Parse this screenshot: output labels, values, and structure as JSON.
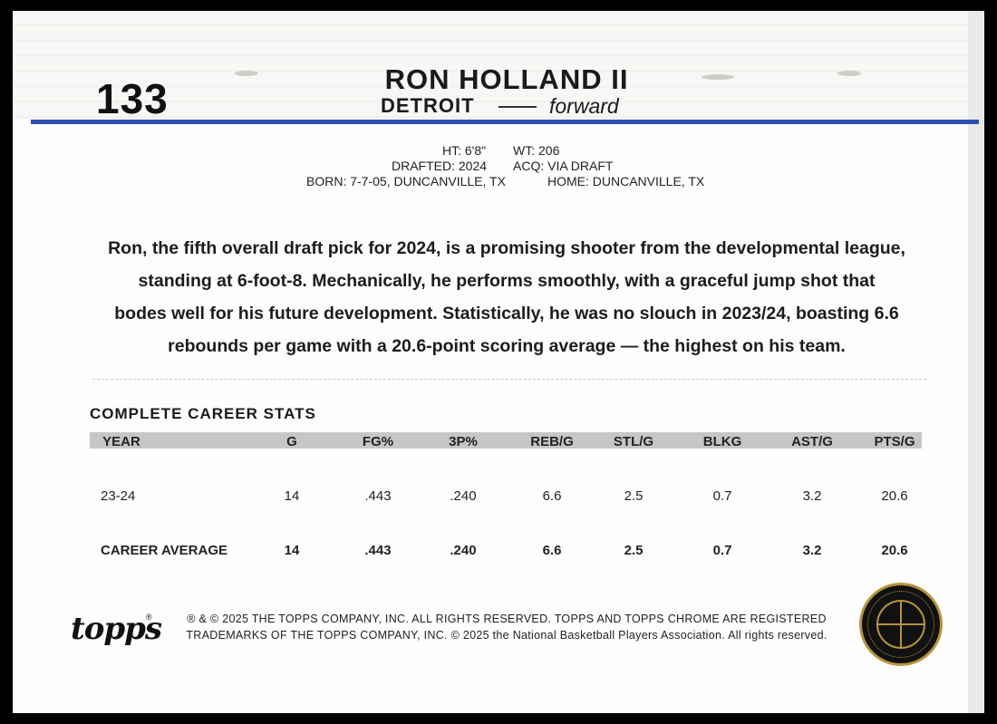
{
  "card": {
    "number": "133",
    "player_name": "RON HOLLAND II",
    "team": "DETROIT",
    "position": "forward"
  },
  "bio": {
    "ht": "HT: 6'8\"",
    "wt": "WT: 206",
    "drafted": "DRAFTED: 2024",
    "acq": "ACQ: VIA DRAFT",
    "born": "BORN: 7-7-05, DUNCANVILLE, TX",
    "home": "HOME: DUNCANVILLE, TX"
  },
  "blurb": {
    "line1": "Ron, the fifth overall draft pick for 2024, is a promising shooter from the developmental league,",
    "line2": "standing at 6-foot-8. Mechanically, he performs smoothly, with a graceful jump shot that",
    "line3": "bodes well for his future development. Statistically, he was no slouch in 2023/24, boasting 6.6",
    "line4": "rebounds per game with a 20.6-point scoring average — the highest on his team."
  },
  "stats": {
    "title": "COMPLETE CAREER STATS",
    "headers": [
      "YEAR",
      "G",
      "FG%",
      "3P%",
      "REB/G",
      "STL/G",
      "BLKG",
      "AST/G",
      "PTS/G"
    ],
    "rows": [
      [
        "23-24",
        "14",
        ".443",
        ".240",
        "6.6",
        "2.5",
        "0.7",
        "3.2",
        "20.6"
      ]
    ],
    "career": [
      "CAREER AVERAGE",
      "14",
      ".443",
      ".240",
      "6.6",
      "2.5",
      "0.7",
      "3.2",
      "20.6"
    ]
  },
  "footer": {
    "logo": "topps",
    "logo_reg": "®",
    "line1": "® & © 2025 THE TOPPS COMPANY, INC. ALL RIGHTS RESERVED. TOPPS AND TOPPS CHROME ARE REGISTERED",
    "line2": "TRADEMARKS OF THE TOPPS COMPANY, INC. © 2025 the National Basketball Players Association. All rights reserved.",
    "seal_text": "NATIONAL BASKETBALL PLAYERS ASSOCIATION"
  },
  "colors": {
    "accent_rule": "#2f4fb0",
    "seal_gold": "#b8953c",
    "stats_header_bg": "#c6c6c6"
  }
}
